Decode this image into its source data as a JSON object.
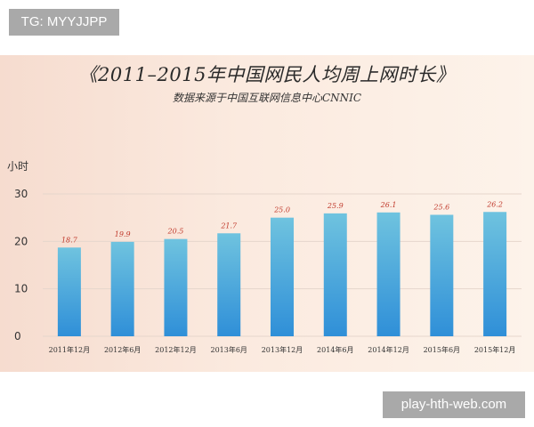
{
  "tag": "TG: MYYJJPP",
  "watermark": "play-hth-web.com",
  "chart_data": {
    "type": "bar",
    "title": "《2011–2015年中国网民人均周上网时长》",
    "subtitle": "数据来源于中国互联网信息中心CNNIC",
    "ylabel": "小时",
    "xlabel": "",
    "categories": [
      "2011年12月",
      "2012年6月",
      "2012年12月",
      "2013年6月",
      "2013年12月",
      "2014年6月",
      "2014年12月",
      "2015年6月",
      "2015年12月"
    ],
    "values": [
      18.7,
      19.9,
      20.5,
      21.7,
      25.0,
      25.9,
      26.1,
      25.6,
      26.2
    ],
    "value_labels": [
      "18.7",
      "19.9",
      "20.5",
      "21.7",
      "25.0",
      "25.9",
      "26.1",
      "25.6",
      "26.2"
    ],
    "ylim": [
      0,
      30
    ],
    "yticks": [
      "0",
      "10",
      "20",
      "30"
    ],
    "grid": true,
    "colors": {
      "bar_top": "#6fc3df",
      "bar_bottom": "#2f8fd8",
      "value_label": "#c0392b",
      "grid": "#e6d6cc"
    }
  }
}
